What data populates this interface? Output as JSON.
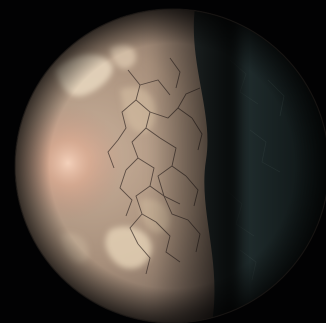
{
  "scene": {
    "subject": "planet",
    "palette": {
      "space": "#020203",
      "day_surface": "#b89f86",
      "day_shadow": "#6e5c4f",
      "night_surface": "#1e2a2c",
      "night_deep": "#0c1314",
      "clouds": "#e8d6bd",
      "glint": "#f2c9b0",
      "terminator": "#3a3531"
    }
  }
}
